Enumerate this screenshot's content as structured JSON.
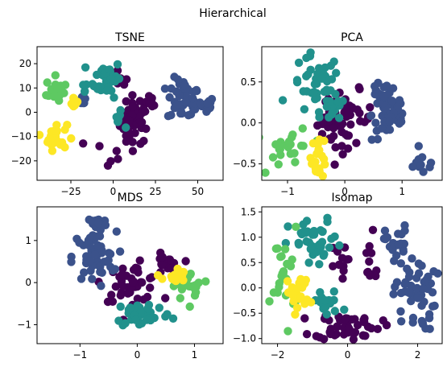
{
  "suptitle": "Hierarchical",
  "colors": {
    "cluster0": "#440154",
    "cluster1": "#3b528b",
    "cluster2": "#21918c",
    "cluster3": "#5ec962",
    "cluster4": "#fde725",
    "axes": "#000000",
    "background": "#ffffff"
  },
  "chart_data": [
    {
      "type": "scatter",
      "title": "TSNE",
      "xlim": [
        -45,
        65
      ],
      "ylim": [
        -28,
        27
      ],
      "xticks": [
        -25,
        0,
        25,
        50
      ],
      "yticks": [
        -20,
        -10,
        0,
        10,
        20
      ],
      "xtick_labels": [
        "−25",
        "0",
        "25",
        "50"
      ],
      "ytick_labels": [
        "−20",
        "−10",
        "0",
        "10",
        "20"
      ],
      "clusters": [
        {
          "color": "cluster0",
          "regions": [
            [
              13,
              -3,
              8,
              9
            ],
            [
              -3,
              -17,
              13,
              6
            ],
            [
              21,
              3,
              4,
              4
            ],
            [
              4,
              13,
              4,
              3
            ]
          ],
          "n": 75
        },
        {
          "color": "cluster1",
          "regions": [
            [
              42,
              5,
              9,
              8
            ],
            [
              55,
              3,
              4,
              3
            ],
            [
              -18,
              5,
              2,
              2
            ]
          ],
          "n": 70
        },
        {
          "color": "cluster2",
          "regions": [
            [
              -3,
              14,
              7,
              7
            ],
            [
              -14,
              11,
              5,
              2
            ],
            [
              3,
              -3,
              3,
              3
            ]
          ],
          "n": 55
        },
        {
          "color": "cluster3",
          "regions": [
            [
              -34,
              9,
              5,
              5
            ]
          ],
          "n": 30
        },
        {
          "color": "cluster4",
          "regions": [
            [
              -34,
              -10,
              6,
              5
            ],
            [
              -23,
              4,
              2,
              2
            ]
          ],
          "n": 35
        }
      ]
    },
    {
      "type": "scatter",
      "title": "PCA",
      "xlim": [
        -1.45,
        1.7
      ],
      "ylim": [
        -0.7,
        0.93
      ],
      "xticks": [
        -1,
        0,
        1
      ],
      "yticks": [
        -0.5,
        0.0,
        0.5
      ],
      "xtick_labels": [
        "−1",
        "0",
        "1"
      ],
      "ytick_labels": [
        "−0.5",
        "0.0",
        "0.5"
      ],
      "clusters": [
        {
          "color": "cluster0",
          "regions": [
            [
              0.05,
              0.05,
              0.4,
              0.3
            ],
            [
              -0.3,
              0.0,
              0.2,
              0.2
            ]
          ],
          "n": 60
        },
        {
          "color": "cluster1",
          "regions": [
            [
              0.8,
              0.1,
              0.3,
              0.3
            ],
            [
              1.35,
              -0.5,
              0.25,
              0.12
            ],
            [
              0.6,
              0.35,
              0.15,
              0.12
            ]
          ],
          "n": 70
        },
        {
          "color": "cluster2",
          "regions": [
            [
              -0.5,
              0.45,
              0.4,
              0.35
            ],
            [
              -0.2,
              0.15,
              0.2,
              0.15
            ]
          ],
          "n": 55
        },
        {
          "color": "cluster3",
          "regions": [
            [
              -0.95,
              -0.3,
              0.35,
              0.22
            ]
          ],
          "n": 35
        },
        {
          "color": "cluster4",
          "regions": [
            [
              -0.45,
              -0.4,
              0.12,
              0.25
            ]
          ],
          "n": 30
        }
      ]
    },
    {
      "type": "scatter",
      "title": "MDS",
      "xlim": [
        -1.75,
        1.5
      ],
      "ylim": [
        -1.45,
        1.8
      ],
      "xticks": [
        -1,
        0,
        1
      ],
      "yticks": [
        -1,
        0,
        1
      ],
      "xtick_labels": [
        "−1",
        "0",
        "1"
      ],
      "ytick_labels": [
        "−1",
        "0",
        "1"
      ],
      "clusters": [
        {
          "color": "cluster0",
          "regions": [
            [
              -0.1,
              0.0,
              0.45,
              0.4
            ],
            [
              0.5,
              0.4,
              0.2,
              0.25
            ]
          ],
          "n": 60
        },
        {
          "color": "cluster1",
          "regions": [
            [
              -0.75,
              0.6,
              0.35,
              0.55
            ],
            [
              -0.7,
              1.4,
              0.15,
              0.15
            ]
          ],
          "n": 70
        },
        {
          "color": "cluster2",
          "regions": [
            [
              0.1,
              -0.75,
              0.45,
              0.3
            ]
          ],
          "n": 55
        },
        {
          "color": "cluster3",
          "regions": [
            [
              0.95,
              -0.1,
              0.3,
              0.3
            ]
          ],
          "n": 30
        },
        {
          "color": "cluster4",
          "regions": [
            [
              0.65,
              0.15,
              0.18,
              0.18
            ]
          ],
          "n": 25
        }
      ]
    },
    {
      "type": "scatter",
      "title": "Isomap",
      "xlim": [
        -2.45,
        2.7
      ],
      "ylim": [
        -1.1,
        1.6
      ],
      "xticks": [
        -2,
        0,
        2
      ],
      "yticks": [
        -1.0,
        -0.5,
        0.0,
        0.5,
        1.0,
        1.5
      ],
      "xtick_labels": [
        "−2",
        "0",
        "2"
      ],
      "ytick_labels": [
        "−1.0",
        "−0.5",
        "0.0",
        "0.5",
        "1.0",
        "1.5"
      ],
      "clusters": [
        {
          "color": "cluster0",
          "regions": [
            [
              0.0,
              -0.75,
              0.85,
              0.25
            ],
            [
              0.6,
              0.5,
              0.35,
              0.5
            ],
            [
              -0.3,
              0.5,
              0.25,
              0.3
            ]
          ],
          "n": 70
        },
        {
          "color": "cluster1",
          "regions": [
            [
              1.9,
              -0.1,
              0.55,
              0.7
            ],
            [
              1.4,
              0.9,
              0.3,
              0.3
            ]
          ],
          "n": 75
        },
        {
          "color": "cluster2",
          "regions": [
            [
              -0.9,
              0.85,
              0.7,
              0.45
            ],
            [
              -0.6,
              -0.3,
              0.4,
              0.25
            ]
          ],
          "n": 55
        },
        {
          "color": "cluster3",
          "regions": [
            [
              -1.8,
              0.3,
              0.35,
              0.8
            ]
          ],
          "n": 35
        },
        {
          "color": "cluster4",
          "regions": [
            [
              -1.4,
              -0.1,
              0.3,
              0.35
            ]
          ],
          "n": 30
        }
      ]
    }
  ]
}
